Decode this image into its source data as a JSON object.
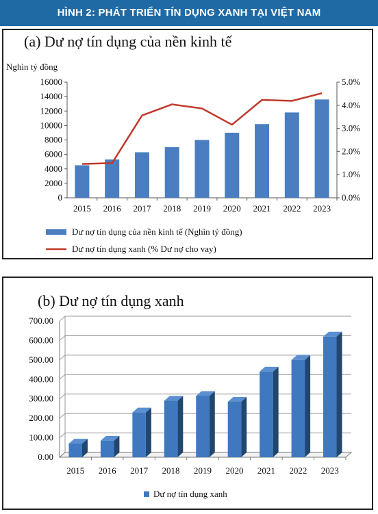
{
  "banner": {
    "title": "HÌNH 2: PHÁT TRIỂN TÍN DỤNG XANH TẠI VIỆT NAM"
  },
  "chart_data": [
    {
      "type": "bar+line",
      "title": "(a) Dư nợ tín dụng của nền kinh tế",
      "ylabel": "Nghìn tỷ đồng",
      "categories": [
        "2015",
        "2016",
        "2017",
        "2018",
        "2019",
        "2020",
        "2021",
        "2022",
        "2023"
      ],
      "left_axis": {
        "ylim": [
          0,
          16000
        ],
        "ticks": [
          "0",
          "2000",
          "4000",
          "6000",
          "8000",
          "10000",
          "12000",
          "14000",
          "16000"
        ]
      },
      "right_axis": {
        "ylim": [
          0,
          0.05
        ],
        "ticks": [
          "0.0%",
          "1.0%",
          "2.0%",
          "3.0%",
          "4.0%",
          "5.0%"
        ]
      },
      "series": [
        {
          "name": "Dư nợ tín dụng của nền kinh tế (Nghìn tỷ đồng)",
          "kind": "bar",
          "axis": "left",
          "color": "#4a7ec0",
          "values": [
            4500,
            5300,
            6300,
            7000,
            8000,
            9000,
            10200,
            11800,
            13600
          ]
        },
        {
          "name": "Dư nợ tín dụng xanh (% Dư nợ cho vay)",
          "kind": "line",
          "axis": "right",
          "color": "#c0392b",
          "values": [
            0.0146,
            0.015,
            0.0356,
            0.0404,
            0.0386,
            0.0316,
            0.0423,
            0.0419,
            0.0452
          ]
        }
      ],
      "legend_position": "bottom",
      "grid": false
    },
    {
      "type": "bar",
      "style": "3d",
      "title": "(b) Dư nợ tín dụng xanh",
      "categories": [
        "2015",
        "2016",
        "2017",
        "2018",
        "2019",
        "2020",
        "2021",
        "2022",
        "2023"
      ],
      "ylim": [
        0,
        700
      ],
      "ticks": [
        "0.00",
        "100.00",
        "200.00",
        "300.00",
        "400.00",
        "500.00",
        "600.00",
        "700.00"
      ],
      "series": [
        {
          "name": "Dư nợ tín dụng xanh",
          "color": "#3f78bf",
          "values": [
            70,
            85,
            230,
            290,
            315,
            285,
            440,
            500,
            620
          ]
        }
      ],
      "legend_position": "bottom",
      "grid": true
    }
  ]
}
